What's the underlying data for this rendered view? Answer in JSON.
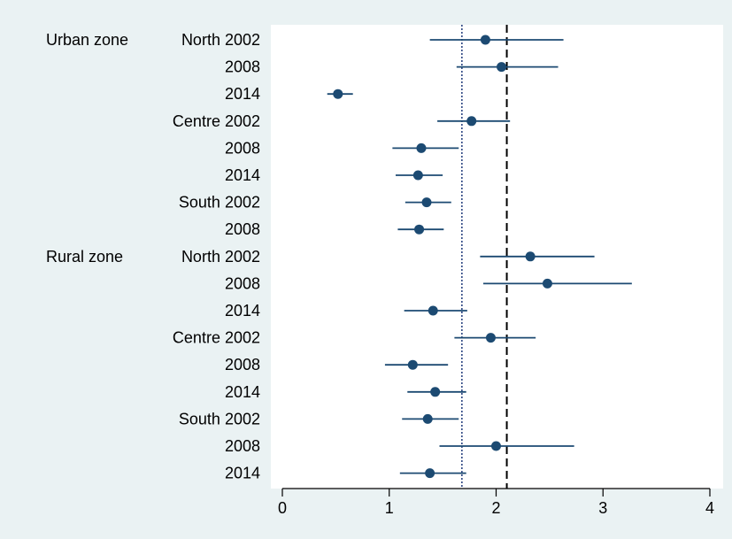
{
  "chart_data": {
    "type": "forest",
    "title": "",
    "xlabel": "",
    "ylabel": "",
    "xlim": [
      0,
      4
    ],
    "x_ticks": [
      0,
      1,
      2,
      3,
      4
    ],
    "x_tick_labels": [
      "0",
      "1",
      "2",
      "3",
      "4"
    ],
    "grid": false,
    "reference_lines": [
      {
        "x": 1.68,
        "style": "dotted",
        "color": "#1f3a7a"
      },
      {
        "x": 2.1,
        "style": "dashed",
        "color": "#000000"
      }
    ],
    "groups": [
      {
        "label": "Urban zone",
        "row": 0
      },
      {
        "label": "Rural zone",
        "row": 8
      }
    ],
    "rows": [
      {
        "label": "North 2002",
        "estimate": 1.9,
        "lower": 1.38,
        "upper": 2.63
      },
      {
        "label": "2008",
        "estimate": 2.05,
        "lower": 1.63,
        "upper": 2.58
      },
      {
        "label": "2014",
        "estimate": 0.52,
        "lower": 0.42,
        "upper": 0.66
      },
      {
        "label": "Centre 2002",
        "estimate": 1.77,
        "lower": 1.45,
        "upper": 2.13
      },
      {
        "label": "2008",
        "estimate": 1.3,
        "lower": 1.03,
        "upper": 1.65
      },
      {
        "label": "2014",
        "estimate": 1.27,
        "lower": 1.06,
        "upper": 1.5
      },
      {
        "label": "South 2002",
        "estimate": 1.35,
        "lower": 1.15,
        "upper": 1.58
      },
      {
        "label": "2008",
        "estimate": 1.28,
        "lower": 1.08,
        "upper": 1.51
      },
      {
        "label": "North 2002",
        "estimate": 2.32,
        "lower": 1.85,
        "upper": 2.92
      },
      {
        "label": "2008",
        "estimate": 2.48,
        "lower": 1.88,
        "upper": 3.27
      },
      {
        "label": "2014",
        "estimate": 1.41,
        "lower": 1.14,
        "upper": 1.73
      },
      {
        "label": "Centre 2002",
        "estimate": 1.95,
        "lower": 1.61,
        "upper": 2.37
      },
      {
        "label": "2008",
        "estimate": 1.22,
        "lower": 0.96,
        "upper": 1.55
      },
      {
        "label": "2014",
        "estimate": 1.43,
        "lower": 1.17,
        "upper": 1.72
      },
      {
        "label": "South 2002",
        "estimate": 1.36,
        "lower": 1.12,
        "upper": 1.65
      },
      {
        "label": "2008",
        "estimate": 2.0,
        "lower": 1.47,
        "upper": 2.73
      },
      {
        "label": "2014",
        "estimate": 1.38,
        "lower": 1.1,
        "upper": 1.72
      }
    ],
    "colors": {
      "background": "#eaf2f3",
      "plot_background": "#ffffff",
      "marker": "#1c4a72",
      "ci_line": "#1c4a72"
    }
  }
}
